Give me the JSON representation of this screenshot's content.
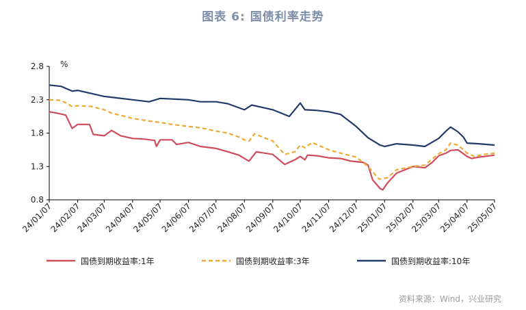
{
  "title": "图表 6:   国债利率走势",
  "source": "资料来源：Wind，兴业研究",
  "chart_data": {
    "type": "line",
    "unit": "%",
    "ylim": [
      0.8,
      2.8
    ],
    "yticks": [
      "2.8",
      "2.3",
      "1.8",
      "1.3",
      "0.8"
    ],
    "xlim": [
      "2024-01-07",
      "2025-05-07"
    ],
    "xticks": [
      {
        "label": "24/01/07",
        "date": "2024-01-07"
      },
      {
        "label": "24/02/07",
        "date": "2024-02-07"
      },
      {
        "label": "24/03/07",
        "date": "2024-03-07"
      },
      {
        "label": "24/04/07",
        "date": "2024-04-07"
      },
      {
        "label": "24/05/07",
        "date": "2024-05-07"
      },
      {
        "label": "24/06/07",
        "date": "2024-06-07"
      },
      {
        "label": "24/07/07",
        "date": "2024-07-07"
      },
      {
        "label": "24/08/07",
        "date": "2024-08-07"
      },
      {
        "label": "24/09/07",
        "date": "2024-09-07"
      },
      {
        "label": "24/10/07",
        "date": "2024-10-07"
      },
      {
        "label": "24/11/07",
        "date": "2024-11-07"
      },
      {
        "label": "24/12/07",
        "date": "2024-12-07"
      },
      {
        "label": "25/01/07",
        "date": "2025-01-07"
      },
      {
        "label": "25/02/07",
        "date": "2025-02-07"
      },
      {
        "label": "25/03/07",
        "date": "2025-03-07"
      },
      {
        "label": "25/04/07",
        "date": "2025-04-07"
      },
      {
        "label": "25/05/07",
        "date": "2025-05-07"
      }
    ],
    "grid": false,
    "legend_position": "bottom",
    "series": [
      {
        "name": "国债到期收益率:1年",
        "color": "#d04a5a",
        "style": "solid",
        "points": [
          [
            "2024-01-07",
            2.12
          ],
          [
            "2024-01-15",
            2.1
          ],
          [
            "2024-01-25",
            2.07
          ],
          [
            "2024-02-01",
            1.87
          ],
          [
            "2024-02-07",
            1.93
          ],
          [
            "2024-02-20",
            1.93
          ],
          [
            "2024-02-24",
            1.78
          ],
          [
            "2024-03-07",
            1.76
          ],
          [
            "2024-03-15",
            1.84
          ],
          [
            "2024-03-25",
            1.76
          ],
          [
            "2024-04-07",
            1.72
          ],
          [
            "2024-04-20",
            1.71
          ],
          [
            "2024-05-01",
            1.69
          ],
          [
            "2024-05-03",
            1.6
          ],
          [
            "2024-05-07",
            1.7
          ],
          [
            "2024-05-20",
            1.7
          ],
          [
            "2024-05-25",
            1.63
          ],
          [
            "2024-06-07",
            1.66
          ],
          [
            "2024-06-20",
            1.6
          ],
          [
            "2024-07-07",
            1.57
          ],
          [
            "2024-07-20",
            1.52
          ],
          [
            "2024-08-01",
            1.47
          ],
          [
            "2024-08-07",
            1.42
          ],
          [
            "2024-08-12",
            1.38
          ],
          [
            "2024-08-20",
            1.52
          ],
          [
            "2024-09-07",
            1.48
          ],
          [
            "2024-09-20",
            1.33
          ],
          [
            "2024-10-01",
            1.4
          ],
          [
            "2024-10-07",
            1.45
          ],
          [
            "2024-10-12",
            1.4
          ],
          [
            "2024-10-15",
            1.47
          ],
          [
            "2024-10-25",
            1.46
          ],
          [
            "2024-11-07",
            1.43
          ],
          [
            "2024-11-20",
            1.42
          ],
          [
            "2024-12-01",
            1.38
          ],
          [
            "2024-12-15",
            1.36
          ],
          [
            "2024-12-20",
            1.32
          ],
          [
            "2024-12-25",
            1.1
          ],
          [
            "2025-01-02",
            0.97
          ],
          [
            "2025-01-05",
            0.95
          ],
          [
            "2025-01-10",
            1.05
          ],
          [
            "2025-01-20",
            1.2
          ],
          [
            "2025-02-07",
            1.3
          ],
          [
            "2025-02-20",
            1.28
          ],
          [
            "2025-02-28",
            1.36
          ],
          [
            "2025-03-07",
            1.46
          ],
          [
            "2025-03-15",
            1.5
          ],
          [
            "2025-03-20",
            1.54
          ],
          [
            "2025-03-28",
            1.55
          ],
          [
            "2025-04-03",
            1.49
          ],
          [
            "2025-04-07",
            1.45
          ],
          [
            "2025-04-12",
            1.42
          ],
          [
            "2025-04-20",
            1.44
          ],
          [
            "2025-05-07",
            1.47
          ]
        ]
      },
      {
        "name": "国债到期收益率:3年",
        "color": "#f0a830",
        "style": "dashed",
        "points": [
          [
            "2024-01-07",
            2.3
          ],
          [
            "2024-01-20",
            2.29
          ],
          [
            "2024-02-01",
            2.2
          ],
          [
            "2024-02-07",
            2.21
          ],
          [
            "2024-02-22",
            2.2
          ],
          [
            "2024-03-07",
            2.15
          ],
          [
            "2024-03-15",
            2.1
          ],
          [
            "2024-04-07",
            2.02
          ],
          [
            "2024-04-25",
            1.98
          ],
          [
            "2024-05-07",
            1.96
          ],
          [
            "2024-05-20",
            1.93
          ],
          [
            "2024-06-07",
            1.9
          ],
          [
            "2024-06-20",
            1.88
          ],
          [
            "2024-07-07",
            1.83
          ],
          [
            "2024-07-20",
            1.8
          ],
          [
            "2024-08-01",
            1.74
          ],
          [
            "2024-08-07",
            1.7
          ],
          [
            "2024-08-12",
            1.68
          ],
          [
            "2024-08-18",
            1.79
          ],
          [
            "2024-09-07",
            1.68
          ],
          [
            "2024-09-20",
            1.48
          ],
          [
            "2024-10-01",
            1.52
          ],
          [
            "2024-10-07",
            1.62
          ],
          [
            "2024-10-12",
            1.58
          ],
          [
            "2024-10-20",
            1.66
          ],
          [
            "2024-11-07",
            1.55
          ],
          [
            "2024-11-20",
            1.5
          ],
          [
            "2024-12-07",
            1.44
          ],
          [
            "2024-12-20",
            1.3
          ],
          [
            "2025-01-01",
            1.11
          ],
          [
            "2025-01-10",
            1.13
          ],
          [
            "2025-01-20",
            1.25
          ],
          [
            "2025-02-07",
            1.3
          ],
          [
            "2025-02-20",
            1.32
          ],
          [
            "2025-03-07",
            1.49
          ],
          [
            "2025-03-15",
            1.55
          ],
          [
            "2025-03-20",
            1.65
          ],
          [
            "2025-03-28",
            1.62
          ],
          [
            "2025-04-03",
            1.55
          ],
          [
            "2025-04-07",
            1.5
          ],
          [
            "2025-04-15",
            1.45
          ],
          [
            "2025-04-25",
            1.48
          ],
          [
            "2025-05-07",
            1.5
          ]
        ]
      },
      {
        "name": "国债到期收益率:10年",
        "color": "#1f3a68",
        "style": "solid",
        "points": [
          [
            "2024-01-07",
            2.52
          ],
          [
            "2024-01-20",
            2.5
          ],
          [
            "2024-02-01",
            2.43
          ],
          [
            "2024-02-07",
            2.44
          ],
          [
            "2024-03-07",
            2.35
          ],
          [
            "2024-04-07",
            2.3
          ],
          [
            "2024-04-25",
            2.27
          ],
          [
            "2024-05-07",
            2.32
          ],
          [
            "2024-06-07",
            2.3
          ],
          [
            "2024-06-20",
            2.27
          ],
          [
            "2024-07-07",
            2.27
          ],
          [
            "2024-07-20",
            2.24
          ],
          [
            "2024-08-07",
            2.15
          ],
          [
            "2024-08-15",
            2.22
          ],
          [
            "2024-09-07",
            2.15
          ],
          [
            "2024-09-25",
            2.05
          ],
          [
            "2024-10-07",
            2.25
          ],
          [
            "2024-10-12",
            2.15
          ],
          [
            "2024-10-25",
            2.14
          ],
          [
            "2024-11-07",
            2.12
          ],
          [
            "2024-11-20",
            2.08
          ],
          [
            "2024-12-07",
            1.9
          ],
          [
            "2024-12-20",
            1.73
          ],
          [
            "2025-01-02",
            1.62
          ],
          [
            "2025-01-07",
            1.6
          ],
          [
            "2025-01-20",
            1.64
          ],
          [
            "2025-02-07",
            1.62
          ],
          [
            "2025-02-20",
            1.6
          ],
          [
            "2025-03-07",
            1.72
          ],
          [
            "2025-03-15",
            1.83
          ],
          [
            "2025-03-20",
            1.89
          ],
          [
            "2025-03-28",
            1.82
          ],
          [
            "2025-04-03",
            1.74
          ],
          [
            "2025-04-07",
            1.65
          ],
          [
            "2025-04-20",
            1.64
          ],
          [
            "2025-05-07",
            1.62
          ]
        ]
      }
    ]
  }
}
